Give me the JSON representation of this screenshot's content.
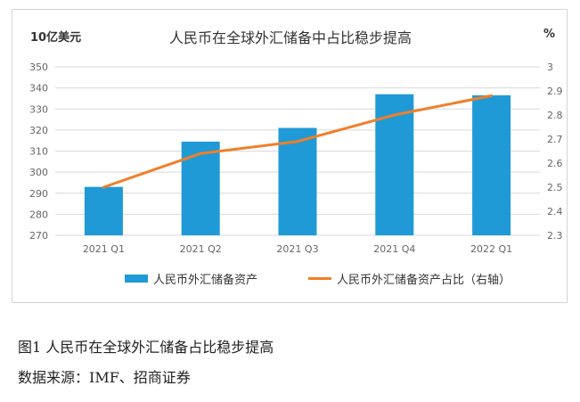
{
  "chart_data": {
    "type": "bar+line",
    "title": "人民币在全球外汇储备中占比稳步提高",
    "y_left_unit": "10亿美元",
    "y_right_unit": "%",
    "categories": [
      "2021 Q1",
      "2021 Q2",
      "2021 Q3",
      "2021 Q4",
      "2022 Q1"
    ],
    "series": [
      {
        "name": "人民币外汇储备资产",
        "type": "bar",
        "axis": "left",
        "values": [
          293,
          314.5,
          321,
          337,
          336.5
        ],
        "color": "#1f9ad6"
      },
      {
        "name": "人民币外汇储备资产占比（右轴）",
        "type": "line",
        "axis": "right",
        "values": [
          2.5,
          2.64,
          2.69,
          2.8,
          2.88
        ],
        "color": "#f07f2a"
      }
    ],
    "y_left": {
      "min": 270,
      "max": 350,
      "ticks": [
        "270",
        "280",
        "290",
        "300",
        "310",
        "320",
        "330",
        "340",
        "350"
      ]
    },
    "y_right": {
      "min": 2.3,
      "max": 3.0,
      "ticks": [
        "2.3",
        "2.4",
        "2.5",
        "2.6",
        "2.7",
        "2.8",
        "2.9",
        "3"
      ]
    },
    "grid": true,
    "legend_position": "bottom"
  },
  "caption": "图1 人民币在全球外汇储备占比稳步提高",
  "source": "数据来源：IMF、招商证券"
}
